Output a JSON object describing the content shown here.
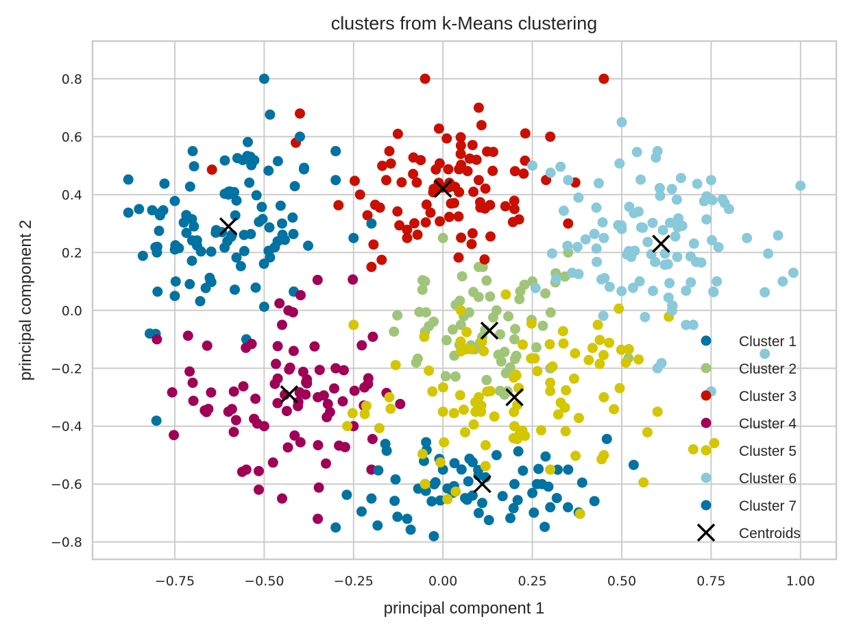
{
  "chart_data": {
    "type": "scatter",
    "title": "clusters from k-Means clustering",
    "xlabel": "principal component 1",
    "ylabel": "principal component 2",
    "xlim": [
      -0.98,
      1.1
    ],
    "ylim": [
      -0.86,
      0.93
    ],
    "xticks": [
      -0.75,
      -0.5,
      -0.25,
      0.0,
      0.25,
      0.5,
      0.75,
      1.0
    ],
    "xtick_labels": [
      "−0.75",
      "−0.50",
      "−0.25",
      "0.00",
      "0.25",
      "0.50",
      "0.75",
      "1.00"
    ],
    "yticks": [
      -0.8,
      -0.6,
      -0.4,
      -0.2,
      0.0,
      0.2,
      0.4,
      0.6,
      0.8
    ],
    "ytick_labels": [
      "−0.8",
      "−0.6",
      "−0.4",
      "−0.2",
      "0.0",
      "0.2",
      "0.4",
      "0.6",
      "0.8"
    ],
    "grid": true,
    "legend_position": "lower right",
    "series": [
      {
        "name": "Cluster 1",
        "color": "#0173a2",
        "center": [
          -0.6,
          0.29
        ],
        "spread": [
          0.13,
          0.16
        ],
        "count": 90,
        "sample_points": [
          [
            -0.85,
            0.35
          ],
          [
            -0.8,
            0.2
          ],
          [
            -0.75,
            0.05
          ],
          [
            -0.7,
            0.55
          ],
          [
            -0.6,
            0.4
          ],
          [
            -0.5,
            0.8
          ],
          [
            -0.45,
            0.3
          ],
          [
            -0.3,
            0.45
          ],
          [
            -0.2,
            0.3
          ],
          [
            -0.82,
            -0.08
          ],
          [
            -0.55,
            -0.1
          ],
          [
            -0.65,
            0.1
          ],
          [
            -0.4,
            0.6
          ],
          [
            -0.3,
            0.55
          ],
          [
            -0.25,
            0.25
          ]
        ]
      },
      {
        "name": "Cluster 2",
        "color": "#a0c579",
        "center": [
          0.13,
          -0.07
        ],
        "spread": [
          0.14,
          0.13
        ],
        "count": 60,
        "sample_points": [
          [
            0.0,
            0.25
          ],
          [
            0.1,
            0.15
          ],
          [
            0.25,
            0.1
          ],
          [
            0.35,
            0.2
          ],
          [
            0.2,
            -0.1
          ],
          [
            0.05,
            -0.05
          ],
          [
            0.3,
            -0.2
          ],
          [
            -0.05,
            0.1
          ],
          [
            0.15,
            0.0
          ]
        ]
      },
      {
        "name": "Cluster 3",
        "color": "#ca0f00",
        "center": [
          0.0,
          0.42
        ],
        "spread": [
          0.16,
          0.14
        ],
        "count": 80,
        "sample_points": [
          [
            -0.4,
            0.68
          ],
          [
            -0.3,
            0.55
          ],
          [
            -0.15,
            0.55
          ],
          [
            -0.05,
            0.8
          ],
          [
            0.1,
            0.7
          ],
          [
            0.2,
            0.35
          ],
          [
            0.3,
            0.6
          ],
          [
            0.45,
            0.8
          ],
          [
            -0.1,
            0.25
          ],
          [
            0.1,
            0.45
          ],
          [
            0.35,
            0.3
          ],
          [
            -0.2,
            0.15
          ]
        ]
      },
      {
        "name": "Cluster 4",
        "color": "#a00055",
        "center": [
          -0.43,
          -0.29
        ],
        "spread": [
          0.13,
          0.17
        ],
        "count": 75,
        "sample_points": [
          [
            -0.8,
            -0.1
          ],
          [
            -0.7,
            -0.25
          ],
          [
            -0.6,
            -0.35
          ],
          [
            -0.55,
            -0.55
          ],
          [
            -0.45,
            -0.65
          ],
          [
            -0.35,
            -0.72
          ],
          [
            -0.3,
            -0.2
          ],
          [
            -0.25,
            -0.4
          ],
          [
            -0.2,
            -0.55
          ],
          [
            -0.45,
            -0.05
          ],
          [
            -0.35,
            -0.3
          ],
          [
            -0.5,
            -0.4
          ]
        ]
      },
      {
        "name": "Cluster 5",
        "color": "#d4c600",
        "center": [
          0.2,
          -0.3
        ],
        "spread": [
          0.2,
          0.14
        ],
        "count": 90,
        "sample_points": [
          [
            -0.25,
            -0.05
          ],
          [
            -0.15,
            -0.3
          ],
          [
            0.0,
            -0.35
          ],
          [
            0.1,
            -0.3
          ],
          [
            0.2,
            -0.4
          ],
          [
            0.3,
            -0.25
          ],
          [
            0.45,
            -0.3
          ],
          [
            0.6,
            -0.35
          ],
          [
            0.7,
            -0.48
          ],
          [
            0.05,
            0.0
          ],
          [
            0.3,
            -0.55
          ],
          [
            0.45,
            -0.5
          ],
          [
            -0.05,
            -0.6
          ]
        ]
      },
      {
        "name": "Cluster 6",
        "color": "#89c9da",
        "center": [
          0.61,
          0.23
        ],
        "spread": [
          0.17,
          0.15
        ],
        "count": 90,
        "sample_points": [
          [
            0.25,
            0.5
          ],
          [
            0.35,
            0.45
          ],
          [
            0.5,
            0.65
          ],
          [
            0.6,
            0.55
          ],
          [
            0.75,
            0.45
          ],
          [
            0.85,
            0.25
          ],
          [
            0.95,
            0.1
          ],
          [
            0.9,
            -0.15
          ],
          [
            0.7,
            -0.05
          ],
          [
            0.55,
            0.1
          ],
          [
            0.45,
            0.25
          ],
          [
            0.6,
            -0.2
          ],
          [
            0.8,
            0.35
          ],
          [
            0.98,
            0.13
          ],
          [
            0.75,
            -0.28
          ]
        ]
      },
      {
        "name": "Cluster 7",
        "color": "#0173a2",
        "center": [
          0.11,
          -0.6
        ],
        "spread": [
          0.18,
          0.08
        ],
        "count": 60,
        "sample_points": [
          [
            -0.3,
            -0.75
          ],
          [
            -0.2,
            -0.65
          ],
          [
            -0.1,
            -0.72
          ],
          [
            0.0,
            -0.55
          ],
          [
            0.1,
            -0.7
          ],
          [
            0.2,
            -0.6
          ],
          [
            0.3,
            -0.68
          ],
          [
            0.35,
            -0.55
          ],
          [
            -0.05,
            -0.6
          ],
          [
            0.15,
            -0.5
          ]
        ]
      }
    ],
    "centroids": {
      "name": "Centroids",
      "color": "#000000",
      "points": [
        [
          -0.6,
          0.29
        ],
        [
          0.13,
          -0.07
        ],
        [
          0.0,
          0.42
        ],
        [
          -0.43,
          -0.29
        ],
        [
          0.2,
          -0.3
        ],
        [
          0.61,
          0.23
        ],
        [
          0.11,
          -0.6
        ]
      ]
    }
  }
}
